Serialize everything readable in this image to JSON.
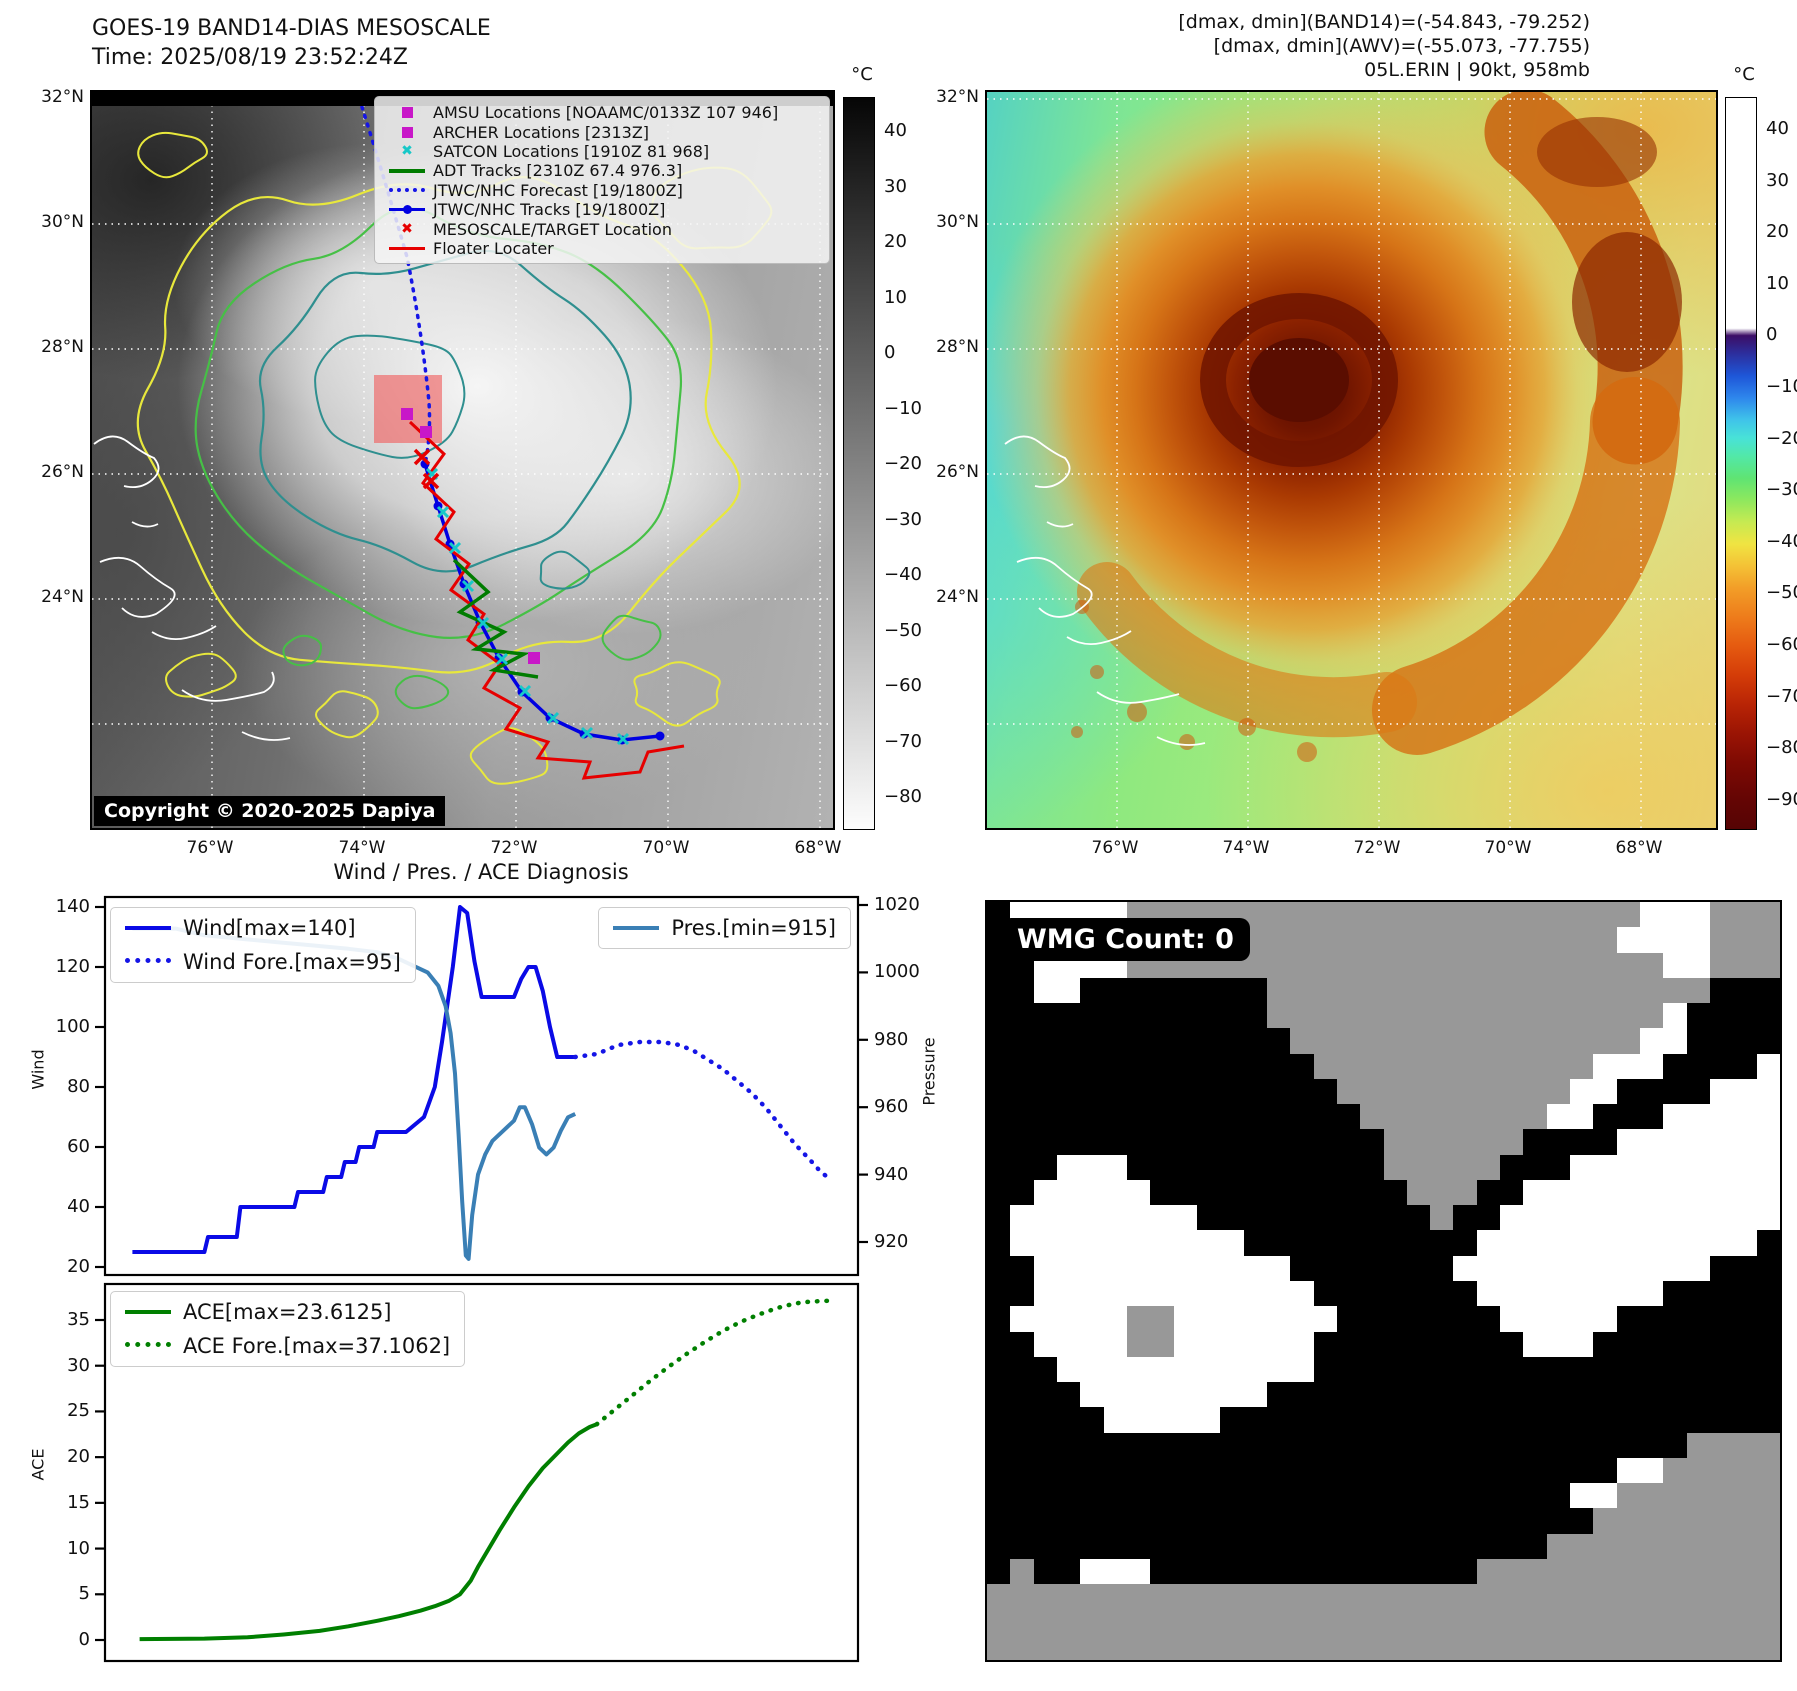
{
  "header": {
    "title_line1": "GOES-19 BAND14-DIAS MESOSCALE",
    "title_line2": "Time: 2025/08/19 23:52:24Z",
    "right_line1": "[dmax, dmin](BAND14)=(-54.843, -79.252)",
    "right_line2": "[dmax, dmin](AWV)=(-55.073, -77.755)",
    "right_line3": "05L.ERIN | 90kt, 958mb"
  },
  "left_map": {
    "copyright": "Copyright © 2020-2025 Dapiya",
    "lat_labels": [
      "32°N",
      "30°N",
      "28°N",
      "26°N",
      "24°N"
    ],
    "lon_labels": [
      "76°W",
      "74°W",
      "72°W",
      "70°W",
      "68°W"
    ],
    "colorbar": {
      "unit": "°C",
      "ticks": [
        "40",
        "30",
        "20",
        "10",
        "0",
        "−10",
        "−20",
        "−30",
        "−40",
        "−50",
        "−60",
        "−70",
        "−80"
      ]
    },
    "legend": {
      "items": [
        {
          "glyph": "square",
          "color": "#c817c8",
          "label": "AMSU Locations [NOAAMC/0133Z 107 946]"
        },
        {
          "glyph": "square",
          "color": "#c817c8",
          "label": "ARCHER Locations [2313Z]"
        },
        {
          "glyph": "x",
          "color": "#17c8c8",
          "label": "SATCON Locations [1910Z 81 968]"
        },
        {
          "glyph": "line",
          "color": "#007c00",
          "label": "ADT Tracks [2310Z 67.4 976.3]"
        },
        {
          "glyph": "dotted",
          "color": "#1515e6",
          "label": "JTWC/NHC Forecast [19/1800Z]"
        },
        {
          "glyph": "line-dot",
          "color": "#0000e1",
          "label": "JTWC/NHC Tracks [19/1800Z]"
        },
        {
          "glyph": "x",
          "color": "#e60000",
          "label": "MESOSCALE/TARGET Location"
        },
        {
          "glyph": "line",
          "color": "#e60000",
          "label": "Floater Locater"
        }
      ]
    }
  },
  "right_map": {
    "lat_labels": [
      "32°N",
      "30°N",
      "28°N",
      "26°N",
      "24°N"
    ],
    "lon_labels": [
      "76°W",
      "74°W",
      "72°W",
      "70°W",
      "68°W"
    ],
    "colorbar": {
      "unit": "°C",
      "ticks": [
        "40",
        "30",
        "20",
        "10",
        "0",
        "−10",
        "−20",
        "−30",
        "−40",
        "−50",
        "−60",
        "−70",
        "−80",
        "−90"
      ]
    }
  },
  "charts": {
    "title": "Wind / Pres. / ACE Diagnosis",
    "wind_axis_label": "Wind",
    "pressure_axis_label": "Pressure",
    "ace_axis_label": "ACE"
  },
  "wmg": {
    "label": "WMG Count: 0",
    "colors": {
      "k": "#000000",
      "g": "#989898",
      "w": "#ffffff"
    },
    "rows": [
      "kwwwwwggggggggggggggggggggggwwwggg",
      "kwwwwwgggggggggggggggggggggwwwwggg",
      "kkwwwwgggggggggggggggggggggggwwggg",
      "kkwwkkkkkkkkgggggggggggggggggggkkk",
      "kkkkkkkkkkkkgggggggggggggggggwkkkk",
      "kkkkkkkkkkkkkgggggggggggggggwwkkkk",
      "kkkkkkkkkkkkkkggggggggggggwwwkkkkw",
      "kkkkkkkkkkkkkkkggggggggggwwkkkkwww",
      "kkkkkkkkkkkkkkkkggggggggwwkkkwwwww",
      "kkkkkkkkkkkkkkkkkggggggkkkkwwwwwww",
      "kkkwwwkkkkkkkkkkkgggggkkkwwwwwwwww",
      "kkwwwwwkkkkkkkkkkkgggkkwwwwwwwwwww",
      "kwwwwwwwwkkkkkkkkkkgkkwwwwwwwwwwww",
      "kwwwwwwwwwwkkkkkkkkkkwwwwwwwwwwwwk",
      "kkwwwwwwwwwwwkkkkkkkwwwwwwwwwwwkkk",
      "kkwwwwwwwwwwwwkkkkkkkwwwwwwwwkkkkk",
      "kwwwwwggwwwwwwwkkkkkkkwwwwwkkkkkkk",
      "kkwwwwggwwwwwwkkkkkkkkkwwwkkkkkkkk",
      "kkkwwwwwwwwwwwkkkkkkkkkkkkkkkkkkkk",
      "kkkkwwwwwwwwkkkkkkkkkkkkkkkkkkkkkk",
      "kkkkkwwwwwkkkkkkkkkkkkkkkkkkkkkkkk",
      "kkkkkkkkkkkkkkkkkkkkkkkkkkkkkkgggg",
      "kkkkkkkkkkkkkkkkkkkkkkkkkkkwwggggg",
      "kkkkkkkkkkkkkkkkkkkkkkkkkwwggggggg",
      "kkkkkkkkkkkkkkkkkkkkkkkkkkgggggggg",
      "kkkkkkkkkkkkkkkkkkkkkkkkgggggggggg",
      "kgkkwwwkkkkkkkkkkkkkkggggggggggggg",
      "gggggggggggggggggggggggggggggggggg",
      "gggggggggggggggggggggggggggggggggg",
      "gggggggggggggggggggggggggggggggggg"
    ]
  },
  "colors": {
    "track_blue": "#0000e1",
    "forecast_blue": "#1515e6",
    "floater_red": "#e60000",
    "adt_green": "#007c00",
    "satcon_cyan": "#17c8c8",
    "amsu_magenta": "#c817c8",
    "pressure_line": "#3a7fb5",
    "wind_line": "#0a0ae6",
    "ace_green": "#007f00",
    "wmg_gray": "#989898",
    "target_box": "rgba(240,100,100,0.65)"
  },
  "chart_data": [
    {
      "id": "wind_pressure",
      "type": "line",
      "title": "Wind / Pres. / ACE Diagnosis",
      "ylabel_left": "Wind",
      "ylabel_right": "Pressure",
      "ylim_left": [
        20,
        140
      ],
      "yticks_left": [
        140,
        120,
        100,
        80,
        60,
        40,
        20
      ],
      "ylim_right": [
        915,
        1020
      ],
      "yticks_right": [
        1020,
        1000,
        980,
        960,
        940,
        920
      ],
      "grid": false,
      "legend_position": "upper-left and upper-right",
      "series": [
        {
          "name": "Wind[max=140]",
          "axis": "left",
          "style": "solid",
          "color": "#0a0ae6",
          "points": [
            [
              0.02,
              25
            ],
            [
              0.12,
              25
            ],
            [
              0.125,
              30
            ],
            [
              0.165,
              30
            ],
            [
              0.17,
              40
            ],
            [
              0.245,
              40
            ],
            [
              0.25,
              45
            ],
            [
              0.285,
              45
            ],
            [
              0.29,
              50
            ],
            [
              0.31,
              50
            ],
            [
              0.315,
              55
            ],
            [
              0.33,
              55
            ],
            [
              0.335,
              60
            ],
            [
              0.355,
              60
            ],
            [
              0.36,
              65
            ],
            [
              0.4,
              65
            ],
            [
              0.425,
              70
            ],
            [
              0.44,
              80
            ],
            [
              0.45,
              95
            ],
            [
              0.465,
              120
            ],
            [
              0.475,
              140
            ],
            [
              0.485,
              138
            ],
            [
              0.495,
              122
            ],
            [
              0.505,
              110
            ],
            [
              0.55,
              110
            ],
            [
              0.56,
              116
            ],
            [
              0.57,
              120
            ],
            [
              0.58,
              120
            ],
            [
              0.59,
              112
            ],
            [
              0.6,
              100
            ],
            [
              0.61,
              90
            ],
            [
              0.635,
              90
            ]
          ]
        },
        {
          "name": "Wind Fore.[max=95]",
          "axis": "left",
          "style": "dotted",
          "color": "#1515e6",
          "points": [
            [
              0.635,
              90
            ],
            [
              0.665,
              91
            ],
            [
              0.695,
              94
            ],
            [
              0.725,
              95
            ],
            [
              0.755,
              95
            ],
            [
              0.78,
              94
            ],
            [
              0.8,
              92
            ],
            [
              0.82,
              89
            ],
            [
              0.84,
              86
            ],
            [
              0.86,
              82
            ],
            [
              0.88,
              78
            ],
            [
              0.9,
              73
            ],
            [
              0.92,
              67
            ],
            [
              0.94,
              61
            ],
            [
              0.96,
              56
            ],
            [
              0.975,
              52
            ],
            [
              0.985,
              50
            ]
          ]
        },
        {
          "name": "Pres.[min=915]",
          "axis": "right",
          "style": "solid",
          "color": "#3a7fb5",
          "points": [
            [
              0.02,
              1013
            ],
            [
              0.08,
              1013
            ],
            [
              0.12,
              1011
            ],
            [
              0.17,
              1010
            ],
            [
              0.22,
              1009
            ],
            [
              0.27,
              1008
            ],
            [
              0.32,
              1007
            ],
            [
              0.36,
              1006
            ],
            [
              0.39,
              1004
            ],
            [
              0.41,
              1002
            ],
            [
              0.43,
              1000
            ],
            [
              0.445,
              996
            ],
            [
              0.455,
              990
            ],
            [
              0.462,
              982
            ],
            [
              0.468,
              970
            ],
            [
              0.473,
              952
            ],
            [
              0.478,
              932
            ],
            [
              0.483,
              916
            ],
            [
              0.487,
              915
            ],
            [
              0.492,
              928
            ],
            [
              0.5,
              940
            ],
            [
              0.51,
              946
            ],
            [
              0.52,
              950
            ],
            [
              0.535,
              953
            ],
            [
              0.55,
              956
            ],
            [
              0.558,
              960
            ],
            [
              0.565,
              960
            ],
            [
              0.575,
              955
            ],
            [
              0.585,
              948
            ],
            [
              0.595,
              946
            ],
            [
              0.605,
              948
            ],
            [
              0.615,
              953
            ],
            [
              0.625,
              957
            ],
            [
              0.635,
              958
            ]
          ]
        }
      ]
    },
    {
      "id": "ace",
      "type": "line",
      "ylabel_left": "ACE",
      "ylim_left": [
        0,
        37.5
      ],
      "yticks_left": [
        35,
        30,
        25,
        20,
        15,
        10,
        5,
        0
      ],
      "grid": false,
      "series": [
        {
          "name": "ACE[max=23.6125]",
          "style": "solid",
          "color": "#007f00",
          "points": [
            [
              0.03,
              0.1
            ],
            [
              0.12,
              0.15
            ],
            [
              0.18,
              0.3
            ],
            [
              0.23,
              0.6
            ],
            [
              0.28,
              1.0
            ],
            [
              0.32,
              1.5
            ],
            [
              0.36,
              2.1
            ],
            [
              0.39,
              2.6
            ],
            [
              0.42,
              3.2
            ],
            [
              0.44,
              3.7
            ],
            [
              0.46,
              4.3
            ],
            [
              0.475,
              5.0
            ],
            [
              0.49,
              6.5
            ],
            [
              0.5,
              8.0
            ],
            [
              0.515,
              10.0
            ],
            [
              0.53,
              12.0
            ],
            [
              0.55,
              14.5
            ],
            [
              0.57,
              16.8
            ],
            [
              0.59,
              18.8
            ],
            [
              0.61,
              20.4
            ],
            [
              0.625,
              21.6
            ],
            [
              0.64,
              22.6
            ],
            [
              0.655,
              23.3
            ],
            [
              0.665,
              23.6
            ]
          ]
        },
        {
          "name": "ACE Fore.[max=37.1062]",
          "style": "dotted",
          "color": "#007f00",
          "points": [
            [
              0.665,
              23.6
            ],
            [
              0.69,
              25.2
            ],
            [
              0.715,
              26.8
            ],
            [
              0.74,
              28.4
            ],
            [
              0.765,
              29.9
            ],
            [
              0.79,
              31.3
            ],
            [
              0.815,
              32.6
            ],
            [
              0.84,
              33.8
            ],
            [
              0.865,
              34.8
            ],
            [
              0.89,
              35.6
            ],
            [
              0.915,
              36.3
            ],
            [
              0.94,
              36.8
            ],
            [
              0.96,
              37.0
            ],
            [
              0.985,
              37.1
            ]
          ]
        }
      ]
    }
  ]
}
